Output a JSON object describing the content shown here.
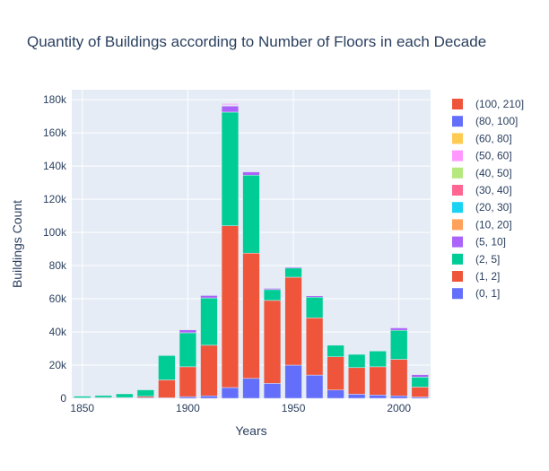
{
  "chart_data": {
    "type": "bar",
    "barmode": "stack",
    "title": "Quantity of Buildings according to Number of Floors in each Decade",
    "xlabel": "Years",
    "ylabel": "Buildings Count",
    "xlim": [
      1845,
      2015
    ],
    "ylim": [
      0,
      186000
    ],
    "xticks": [
      1850,
      1900,
      1950,
      2000
    ],
    "xtick_labels": [
      "1850",
      "1900",
      "1950",
      "2000"
    ],
    "yticks": [
      0,
      20000,
      40000,
      60000,
      80000,
      100000,
      120000,
      140000,
      160000,
      180000
    ],
    "ytick_labels": [
      "0",
      "20k",
      "40k",
      "60k",
      "80k",
      "100k",
      "120k",
      "140k",
      "160k",
      "180k"
    ],
    "grid": true,
    "legend_position": "right",
    "x": [
      1850,
      1860,
      1870,
      1880,
      1890,
      1900,
      1910,
      1920,
      1930,
      1940,
      1950,
      1960,
      1970,
      1980,
      1990,
      2000,
      2010
    ],
    "series": [
      {
        "name": "(0, 1]",
        "color": "#636efa",
        "values": [
          100,
          200,
          200,
          400,
          300,
          1000,
          1500,
          6500,
          12000,
          9000,
          20000,
          14000,
          5000,
          2500,
          2000,
          1500,
          800
        ]
      },
      {
        "name": "(1, 2]",
        "color": "#EF553B",
        "values": [
          200,
          300,
          300,
          800,
          10800,
          18000,
          30500,
          97500,
          75500,
          50000,
          53000,
          34500,
          20000,
          16000,
          17000,
          22000,
          6000
        ]
      },
      {
        "name": "(2, 5]",
        "color": "#00cc96",
        "values": [
          1000,
          1200,
          2200,
          3900,
          14700,
          20500,
          28500,
          68500,
          47000,
          6500,
          5500,
          12500,
          7000,
          8000,
          9500,
          17500,
          6000
        ]
      },
      {
        "name": "(5, 10]",
        "color": "#ab63fa",
        "values": [
          0,
          0,
          0,
          0,
          200,
          1800,
          1500,
          3700,
          2000,
          800,
          600,
          800,
          0,
          0,
          0,
          1500,
          1500
        ]
      },
      {
        "name": "(10, 20]",
        "color": "#FFA15A",
        "values": [
          0,
          0,
          0,
          0,
          0,
          100,
          100,
          300,
          200,
          100,
          100,
          100,
          0,
          0,
          0,
          100,
          100
        ]
      },
      {
        "name": "(20, 30]",
        "color": "#19d3f3",
        "values": [
          0,
          0,
          0,
          0,
          0,
          0,
          100,
          200,
          100,
          0,
          0,
          0,
          0,
          0,
          0,
          0,
          0
        ]
      },
      {
        "name": "(30, 40]",
        "color": "#FF6692",
        "values": [
          0,
          0,
          0,
          0,
          0,
          0,
          0,
          100,
          0,
          0,
          0,
          0,
          0,
          0,
          0,
          0,
          0
        ]
      },
      {
        "name": "(40, 50]",
        "color": "#B6E880",
        "values": [
          0,
          0,
          0,
          0,
          0,
          0,
          0,
          100,
          0,
          0,
          0,
          0,
          0,
          0,
          0,
          0,
          0
        ]
      },
      {
        "name": "(50, 60]",
        "color": "#FF97FF",
        "values": [
          0,
          0,
          0,
          0,
          0,
          0,
          0,
          800,
          0,
          0,
          0,
          0,
          0,
          0,
          0,
          0,
          0
        ]
      },
      {
        "name": "(60, 80]",
        "color": "#FECB52",
        "values": [
          0,
          0,
          0,
          0,
          0,
          0,
          0,
          100,
          0,
          0,
          0,
          0,
          0,
          0,
          0,
          0,
          0
        ]
      },
      {
        "name": "(80, 100]",
        "color": "#636efa",
        "values": [
          0,
          0,
          0,
          0,
          0,
          0,
          0,
          0,
          0,
          0,
          0,
          0,
          0,
          0,
          0,
          0,
          0
        ]
      },
      {
        "name": "(100, 210]",
        "color": "#EF553B",
        "values": [
          0,
          0,
          0,
          0,
          0,
          0,
          0,
          0,
          0,
          0,
          0,
          0,
          0,
          0,
          0,
          0,
          0
        ]
      }
    ],
    "legend_order": [
      "(100, 210]",
      "(80, 100]",
      "(60, 80]",
      "(50, 60]",
      "(40, 50]",
      "(30, 40]",
      "(20, 30]",
      "(10, 20]",
      "(5, 10]",
      "(2, 5]",
      "(1, 2]",
      "(0, 1]"
    ]
  }
}
